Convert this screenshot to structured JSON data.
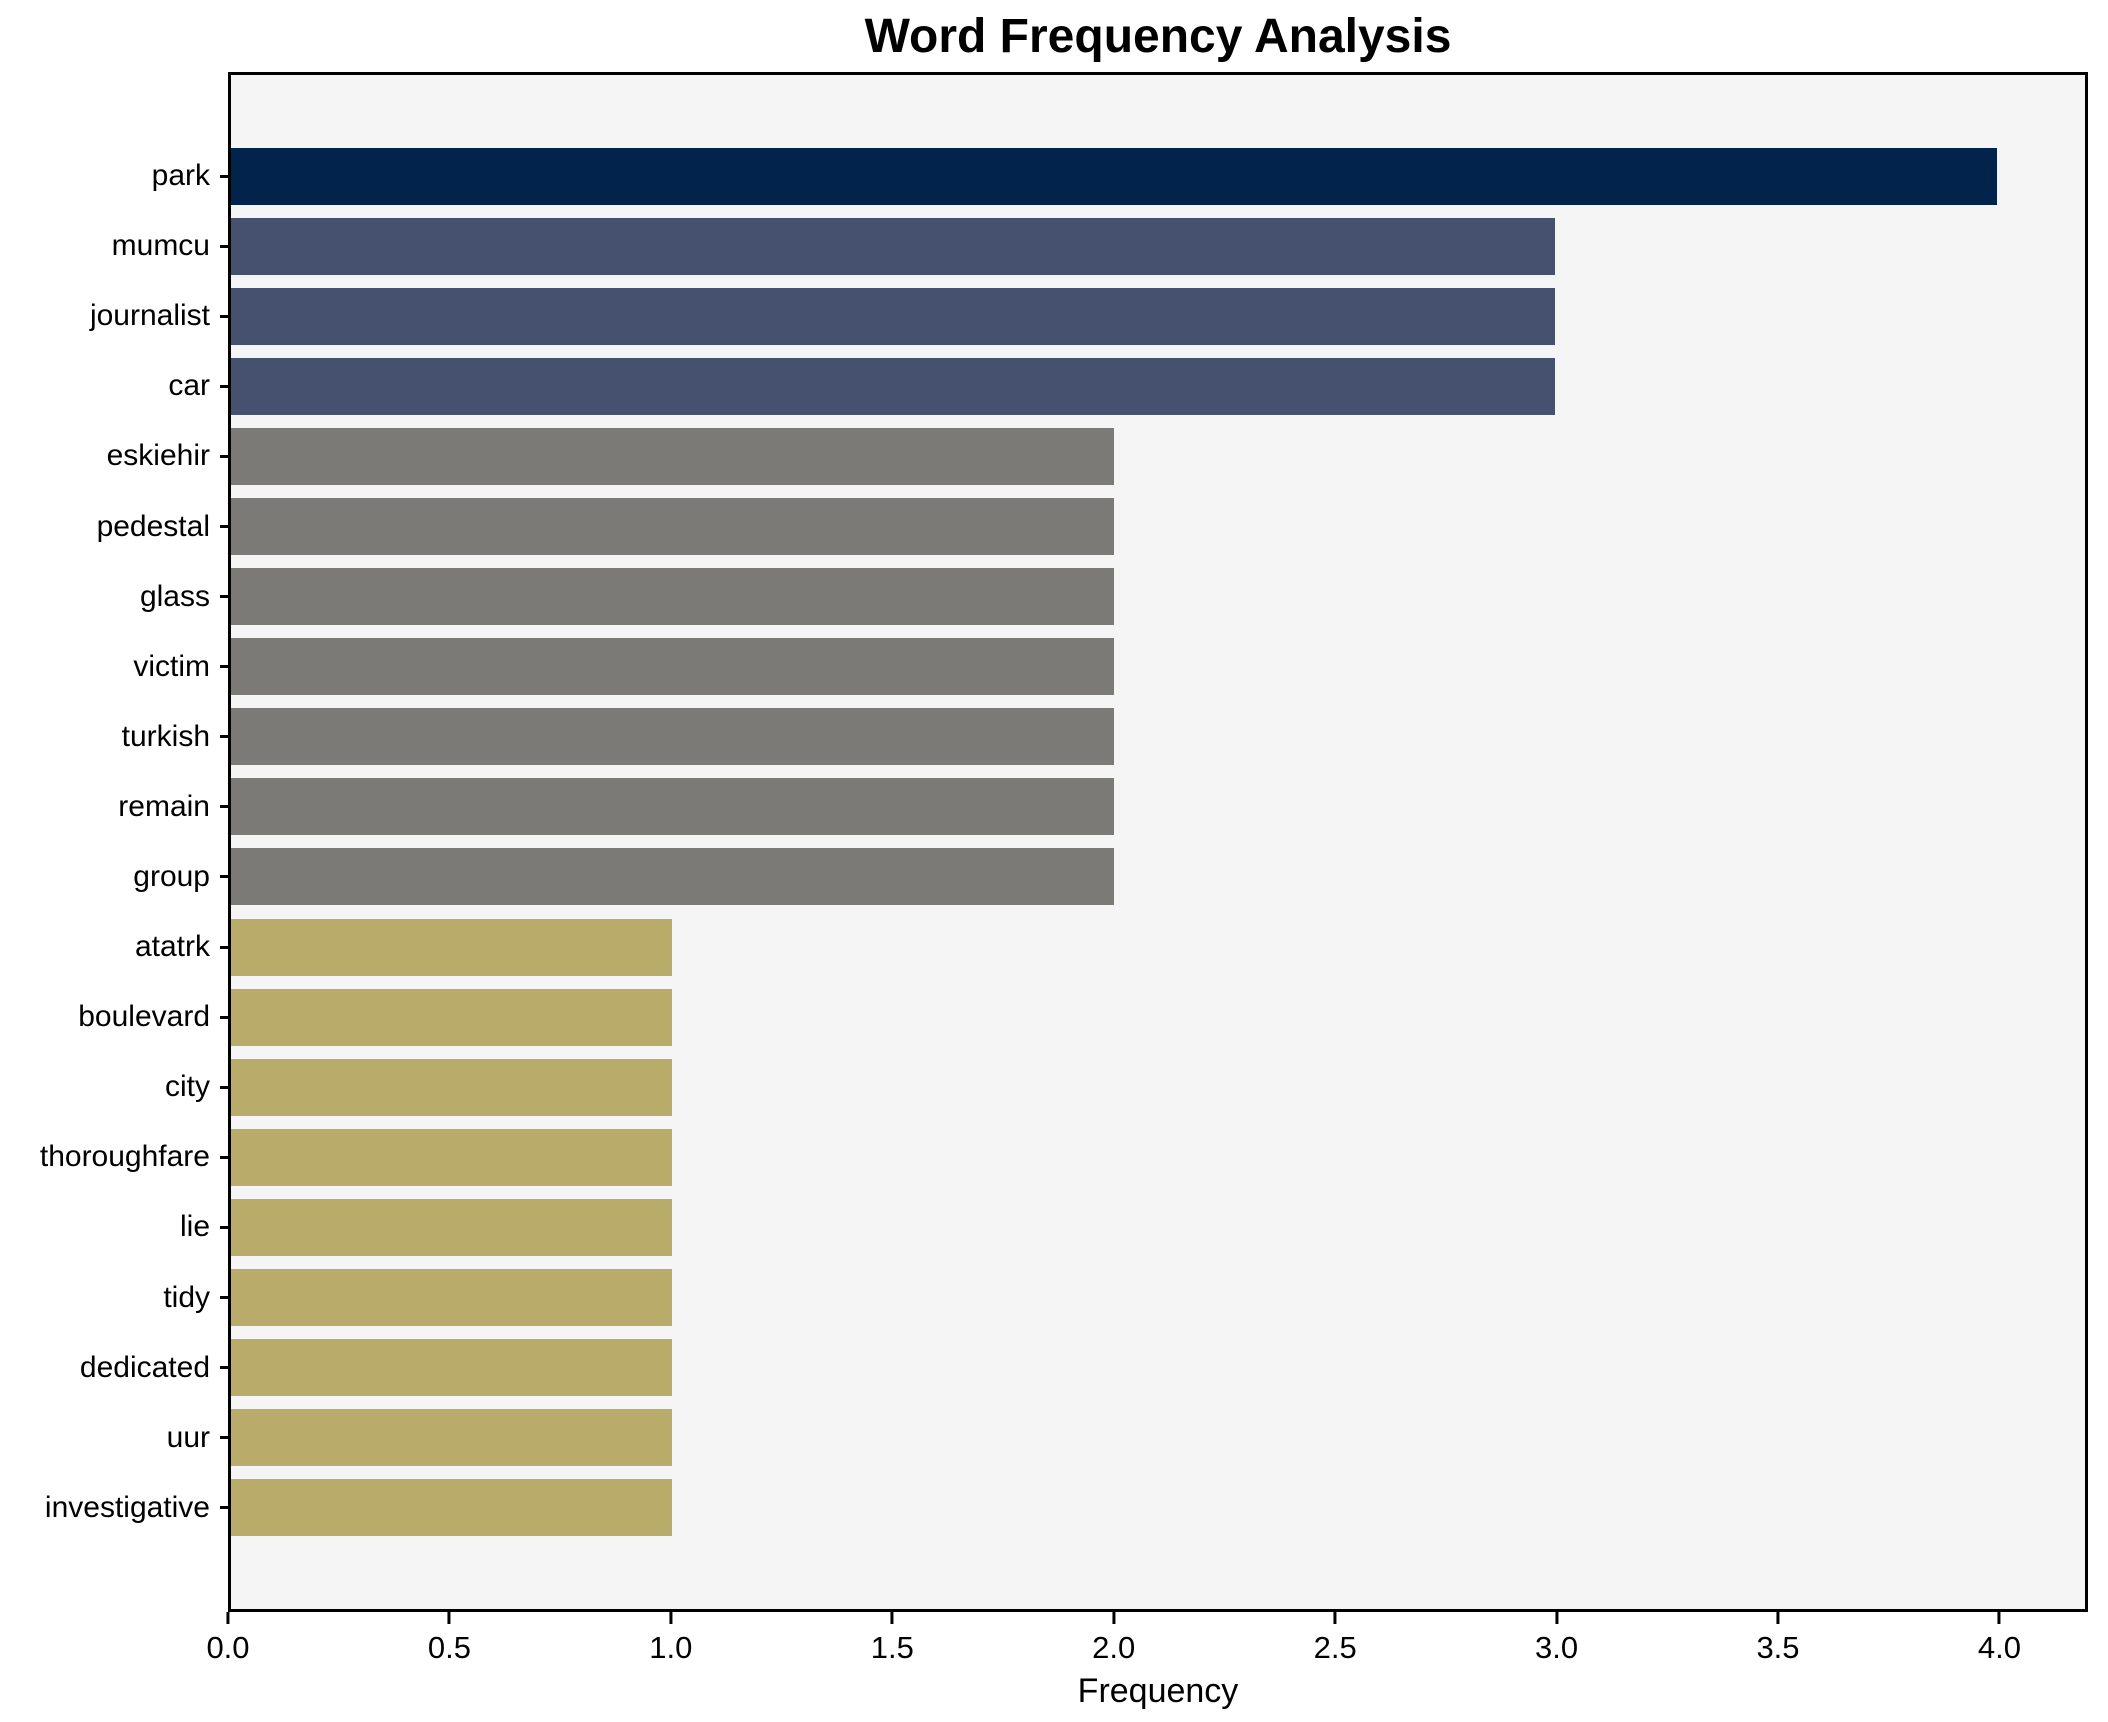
{
  "title": "Word Frequency Analysis",
  "chart_data": {
    "type": "bar",
    "orientation": "horizontal",
    "title": "Word Frequency Analysis",
    "xlabel": "Frequency",
    "ylabel": "",
    "categories": [
      "park",
      "mumcu",
      "journalist",
      "car",
      "eskiehir",
      "pedestal",
      "glass",
      "victim",
      "turkish",
      "remain",
      "group",
      "atatrk",
      "boulevard",
      "city",
      "thoroughfare",
      "lie",
      "tidy",
      "dedicated",
      "uur",
      "investigative"
    ],
    "values": [
      4,
      3,
      3,
      3,
      2,
      2,
      2,
      2,
      2,
      2,
      2,
      1,
      1,
      1,
      1,
      1,
      1,
      1,
      1,
      1
    ],
    "bar_colors": [
      "#02234c",
      "#46516f",
      "#46516f",
      "#46516f",
      "#7b7a77",
      "#7b7a77",
      "#7b7a77",
      "#7b7a77",
      "#7b7a77",
      "#7b7a77",
      "#7b7a77",
      "#b9ac6b",
      "#b9ac6b",
      "#b9ac6b",
      "#b9ac6b",
      "#b9ac6b",
      "#b9ac6b",
      "#b9ac6b",
      "#b9ac6b",
      "#b9ac6b"
    ],
    "xlim": [
      0,
      4.2
    ],
    "x_ticks": [
      0,
      0.5,
      1,
      1.5,
      2,
      2.5,
      3,
      3.5,
      4
    ],
    "x_tick_labels": [
      "0.0",
      "0.5",
      "1.0",
      "1.5",
      "2.0",
      "2.5",
      "3.0",
      "3.5",
      "4.0"
    ],
    "grid": false,
    "legend": false,
    "colors": {
      "figure_background": "#ffffff",
      "plot_background": "#f5f5f6",
      "spine": "#000000",
      "text": "#000000"
    }
  }
}
